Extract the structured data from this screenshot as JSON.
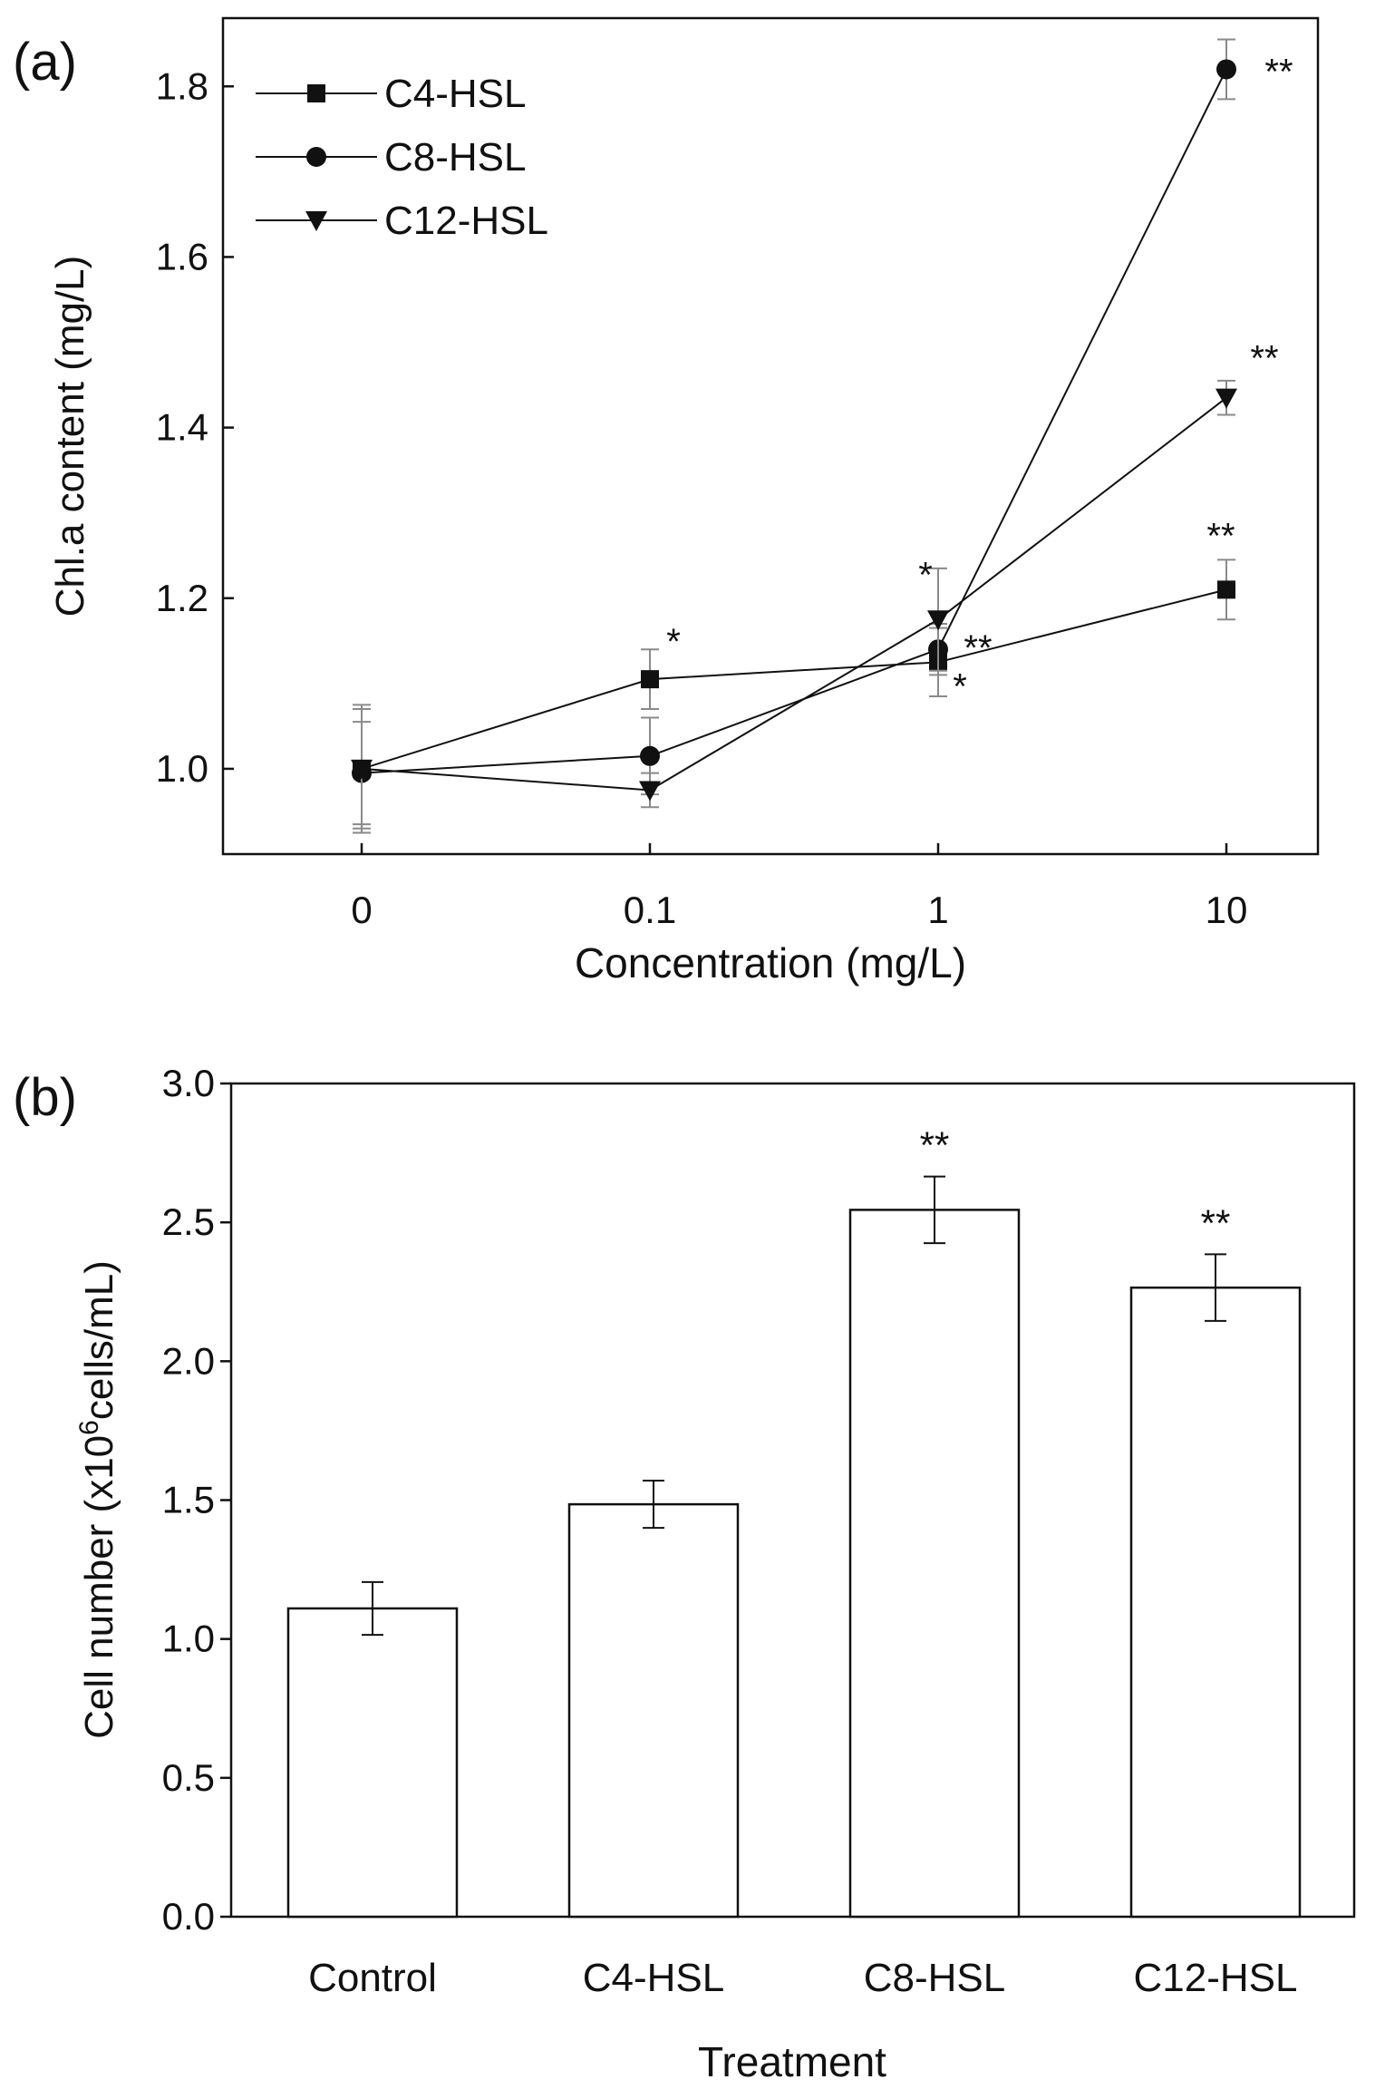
{
  "colors": {
    "ink": "#111111",
    "error_bar": "#8a8a8a",
    "bar_fill": "#ffffff",
    "background": "#ffffff"
  },
  "chart_data": [
    {
      "panel_label": "(a)",
      "type": "line",
      "xlabel": "Concentration (mg/L)",
      "ylabel": "Chl.a content (mg/L)",
      "x": [
        "0",
        "0.1",
        "1",
        "10"
      ],
      "ylim": [
        0.9,
        1.88
      ],
      "yticks": [
        "1.0",
        "1.2",
        "1.4",
        "1.6",
        "1.8"
      ],
      "legend_position": "top-left",
      "series": [
        {
          "name": "C4-HSL",
          "marker": "square",
          "values": [
            1.0,
            1.105,
            1.125,
            1.21
          ],
          "errors": [
            0.075,
            0.035,
            0.04,
            0.035
          ],
          "sig": [
            "",
            "*",
            "*",
            "**"
          ]
        },
        {
          "name": "C8-HSL",
          "marker": "circle",
          "values": [
            0.995,
            1.015,
            1.14,
            1.82
          ],
          "errors": [
            0.06,
            0.045,
            0.03,
            0.035
          ],
          "sig": [
            "",
            "",
            "**",
            "**"
          ]
        },
        {
          "name": "C12-HSL",
          "marker": "triangle-down",
          "values": [
            1.0,
            0.975,
            1.175,
            1.435
          ],
          "errors": [
            0.07,
            0.02,
            0.06,
            0.02
          ],
          "sig": [
            "",
            "",
            "*",
            "**"
          ]
        }
      ]
    },
    {
      "panel_label": "(b)",
      "type": "bar",
      "xlabel": "Treatment",
      "ylabel_prefix": "Cell number (x10",
      "ylabel_superscript": "6",
      "ylabel_suffix": "cells/mL)",
      "categories": [
        "Control",
        "C4-HSL",
        "C8-HSL",
        "C12-HSL"
      ],
      "values": [
        1.11,
        1.485,
        2.545,
        2.265
      ],
      "errors": [
        0.095,
        0.085,
        0.12,
        0.12
      ],
      "sig": [
        "",
        "",
        "**",
        "**"
      ],
      "ylim": [
        0,
        3.0
      ],
      "yticks": [
        "0.0",
        "0.5",
        "1.0",
        "1.5",
        "2.0",
        "2.5",
        "3.0"
      ]
    }
  ]
}
